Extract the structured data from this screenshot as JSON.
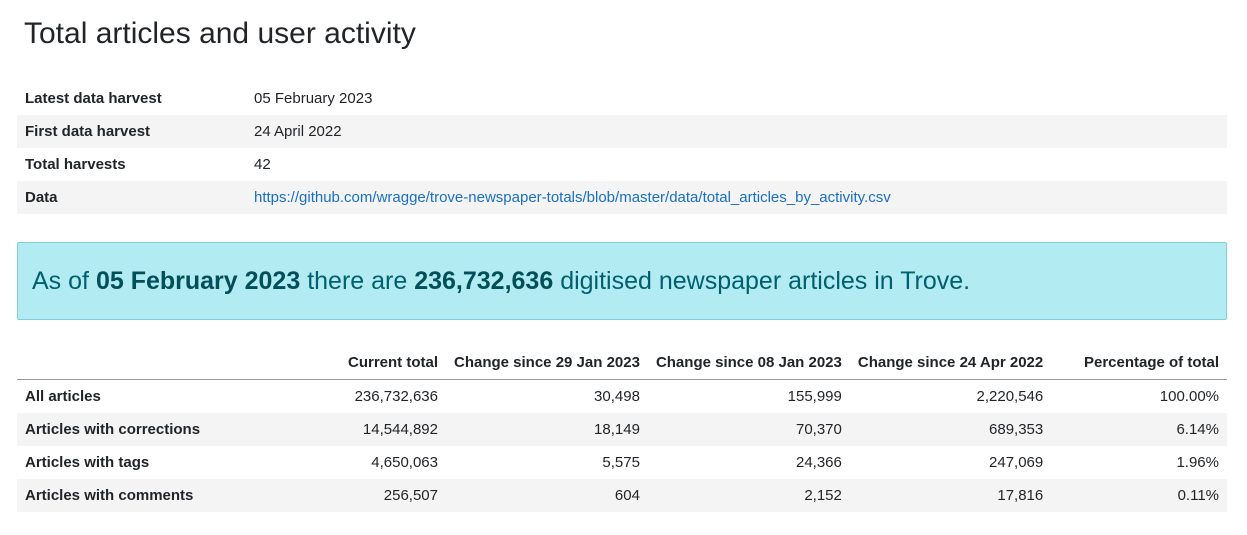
{
  "page": {
    "title": "Total articles and user activity"
  },
  "meta": [
    {
      "key": "Latest data harvest",
      "value": "05 February 2023"
    },
    {
      "key": "First data harvest",
      "value": "24 April 2022"
    },
    {
      "key": "Total harvests",
      "value": "42"
    },
    {
      "key": "Data",
      "value": "https://github.com/wragge/trove-newspaper-totals/blob/master/data/total_articles_by_activity.csv"
    }
  ],
  "callout": {
    "prefix": "As of",
    "date": "05 February 2023",
    "middle": "there are",
    "count": "236,732,636",
    "suffix": "digitised newspaper articles in Trove."
  },
  "totals": {
    "headers": [
      "",
      "Current total",
      "Change since 29 Jan 2023",
      "Change since 08 Jan 2023",
      "Change since 24 Apr 2022",
      "Percentage of total"
    ],
    "rows": [
      {
        "label": "All articles",
        "cells": [
          "236,732,636",
          "30,498",
          "155,999",
          "2,220,546",
          "100.00%"
        ]
      },
      {
        "label": "Articles with corrections",
        "cells": [
          "14,544,892",
          "18,149",
          "70,370",
          "689,353",
          "6.14%"
        ]
      },
      {
        "label": "Articles with tags",
        "cells": [
          "4,650,063",
          "5,575",
          "24,366",
          "247,069",
          "1.96%"
        ]
      },
      {
        "label": "Articles with comments",
        "cells": [
          "256,507",
          "604",
          "2,152",
          "17,816",
          "0.11%"
        ]
      }
    ]
  }
}
